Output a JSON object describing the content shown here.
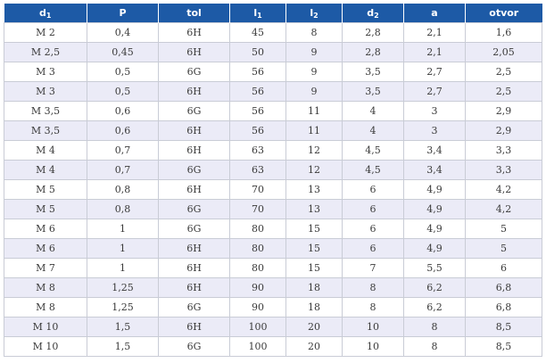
{
  "table": {
    "headers": [
      {
        "base": "d",
        "sub": "1"
      },
      {
        "base": "P",
        "sub": ""
      },
      {
        "base": "tol",
        "sub": ""
      },
      {
        "base": "l",
        "sub": "1"
      },
      {
        "base": "l",
        "sub": "2"
      },
      {
        "base": "d",
        "sub": "2"
      },
      {
        "base": "a",
        "sub": ""
      },
      {
        "base": "otvor",
        "sub": ""
      }
    ],
    "rows": [
      [
        "M 2",
        "0,4",
        "6H",
        "45",
        "8",
        "2,8",
        "2,1",
        "1,6"
      ],
      [
        "M 2,5",
        "0,45",
        "6H",
        "50",
        "9",
        "2,8",
        "2,1",
        "2,05"
      ],
      [
        "M 3",
        "0,5",
        "6G",
        "56",
        "9",
        "3,5",
        "2,7",
        "2,5"
      ],
      [
        "M 3",
        "0,5",
        "6H",
        "56",
        "9",
        "3,5",
        "2,7",
        "2,5"
      ],
      [
        "M 3,5",
        "0,6",
        "6G",
        "56",
        "11",
        "4",
        "3",
        "2,9"
      ],
      [
        "M 3,5",
        "0,6",
        "6H",
        "56",
        "11",
        "4",
        "3",
        "2,9"
      ],
      [
        "M 4",
        "0,7",
        "6H",
        "63",
        "12",
        "4,5",
        "3,4",
        "3,3"
      ],
      [
        "M 4",
        "0,7",
        "6G",
        "63",
        "12",
        "4,5",
        "3,4",
        "3,3"
      ],
      [
        "M 5",
        "0,8",
        "6H",
        "70",
        "13",
        "6",
        "4,9",
        "4,2"
      ],
      [
        "M 5",
        "0,8",
        "6G",
        "70",
        "13",
        "6",
        "4,9",
        "4,2"
      ],
      [
        "M 6",
        "1",
        "6G",
        "80",
        "15",
        "6",
        "4,9",
        "5"
      ],
      [
        "M 6",
        "1",
        "6H",
        "80",
        "15",
        "6",
        "4,9",
        "5"
      ],
      [
        "M 7",
        "1",
        "6H",
        "80",
        "15",
        "7",
        "5,5",
        "6"
      ],
      [
        "M 8",
        "1,25",
        "6H",
        "90",
        "18",
        "8",
        "6,2",
        "6,8"
      ],
      [
        "M 8",
        "1,25",
        "6G",
        "90",
        "18",
        "8",
        "6,2",
        "6,8"
      ],
      [
        "M 10",
        "1,5",
        "6H",
        "100",
        "20",
        "10",
        "8",
        "8,5"
      ],
      [
        "M 10",
        "1,5",
        "6G",
        "100",
        "20",
        "10",
        "8",
        "8,5"
      ]
    ]
  },
  "colors": {
    "header_bg": "#1d5aa6",
    "header_text": "#ffffff",
    "row_alt_bg": "#ebebf7",
    "grid_line": "#c9ccd6"
  }
}
